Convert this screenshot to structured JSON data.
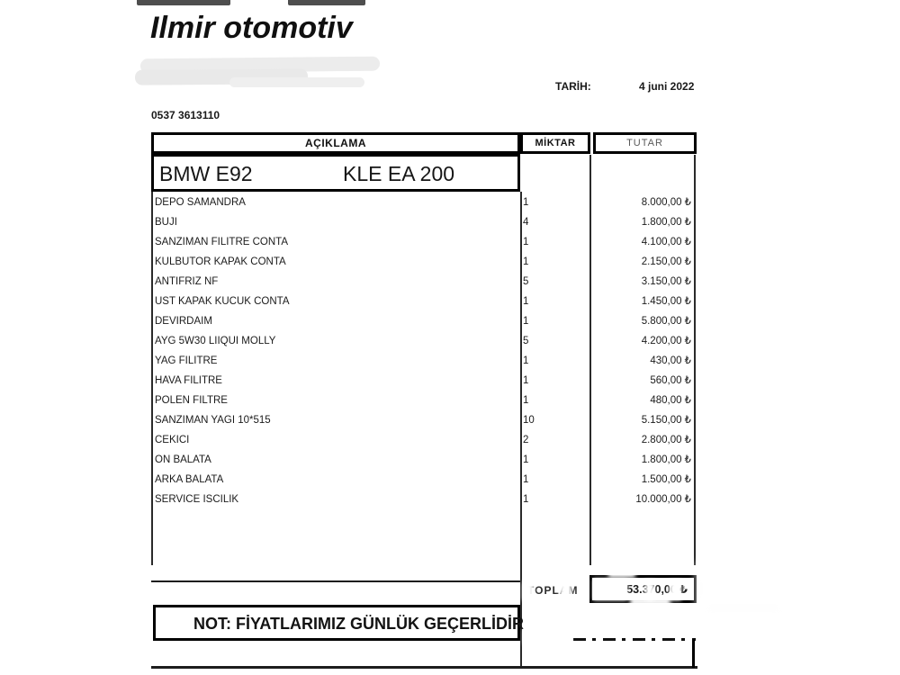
{
  "meta": {
    "business_name": "Ilmir otomotiv",
    "phone": "0537 3613110",
    "date_label": "TARİH:",
    "date_value": "4 juni 2022"
  },
  "table": {
    "headers": {
      "description": "AÇIKLAMA",
      "quantity": "MİKTAR",
      "amount": "TUTAR"
    },
    "vehicle": {
      "model": "BMW E92",
      "plate": "KLE EA 200"
    },
    "items": [
      {
        "description": "DEPO SAMANDRA",
        "quantity": "1",
        "amount": "8.000,00 ₺"
      },
      {
        "description": "BUJI",
        "quantity": "4",
        "amount": "1.800,00 ₺"
      },
      {
        "description": "SANZIMAN FILITRE CONTA",
        "quantity": "1",
        "amount": "4.100,00 ₺"
      },
      {
        "description": "KULBUTOR KAPAK CONTA",
        "quantity": "1",
        "amount": "2.150,00 ₺"
      },
      {
        "description": "ANTIFRIZ NF",
        "quantity": "5",
        "amount": "3.150,00 ₺"
      },
      {
        "description": "UST KAPAK KUCUK CONTA",
        "quantity": "1",
        "amount": "1.450,00 ₺"
      },
      {
        "description": "DEVIRDAIM",
        "quantity": "1",
        "amount": "5.800,00 ₺"
      },
      {
        "description": "AYG 5W30 LIIQUI MOLLY",
        "quantity": "5",
        "amount": "4.200,00 ₺"
      },
      {
        "description": "YAG FILITRE",
        "quantity": "1",
        "amount": "430,00 ₺"
      },
      {
        "description": "HAVA FILITRE",
        "quantity": "1",
        "amount": "560,00 ₺"
      },
      {
        "description": "POLEN FILTRE",
        "quantity": "1",
        "amount": "480,00 ₺"
      },
      {
        "description": "SANZIMAN YAGI 10*515",
        "quantity": "10",
        "amount": "5.150,00 ₺"
      },
      {
        "description": "CEKICI",
        "quantity": "2",
        "amount": "2.800,00 ₺"
      },
      {
        "description": "ON BALATA",
        "quantity": "1",
        "amount": "1.800,00 ₺"
      },
      {
        "description": "ARKA BALATA",
        "quantity": "1",
        "amount": "1.500,00 ₺"
      },
      {
        "description": "SERVICE ISCILIK",
        "quantity": "1",
        "amount": "10.000,00 ₺"
      }
    ],
    "total": {
      "label": "TOPLAM",
      "value": "53.370,00 ₺"
    }
  },
  "footer": {
    "note": "NOT: FİYATLARIMIZ GÜNLÜK GEÇERLİDİR"
  },
  "colors": {
    "ink": "#141414",
    "muted_header": "#5a5a5a",
    "redaction": "#ececec"
  }
}
